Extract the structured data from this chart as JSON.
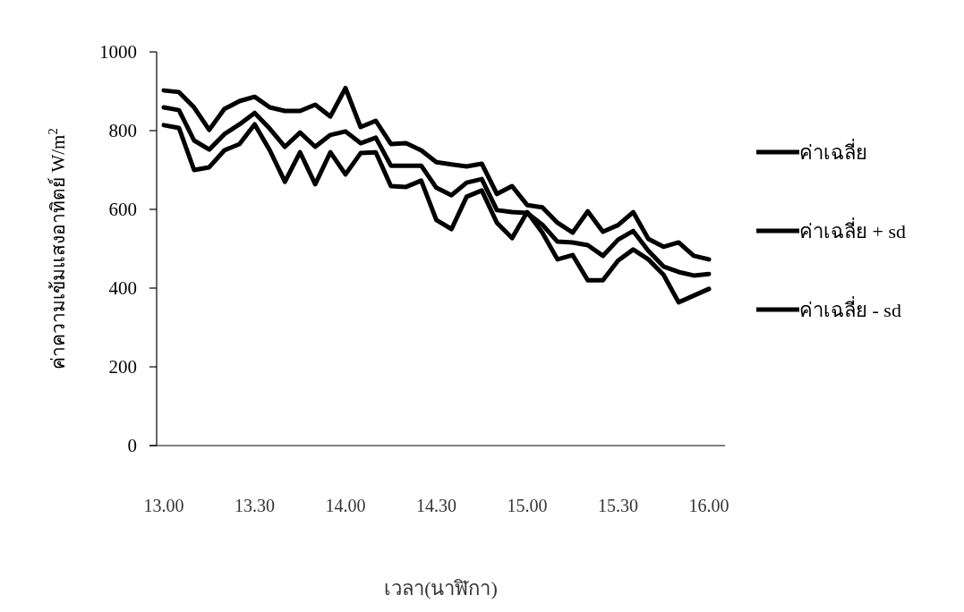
{
  "chart_data": {
    "type": "line",
    "xlabel": "เวลา(นาฬิกา)",
    "ylabel": "ค่าความเข้มแสงอาทิตย์ W/m$^{2}$",
    "categories": [
      "13.00",
      null,
      null,
      null,
      null,
      null,
      "13.30",
      null,
      null,
      null,
      null,
      null,
      "14.00",
      null,
      null,
      null,
      null,
      null,
      "14.30",
      null,
      null,
      null,
      null,
      null,
      "15.00",
      null,
      null,
      null,
      null,
      null,
      "15.30",
      null,
      null,
      null,
      null,
      null,
      "16.00"
    ],
    "series": [
      {
        "name": "ค่าเฉลี่ย",
        "color": "#000000",
        "values": [
          859,
          852,
          775,
          752,
          791,
          816,
          845,
          805,
          759,
          795,
          759,
          789,
          798,
          768,
          782,
          711,
          711,
          711,
          655,
          636,
          668,
          677,
          598,
          593,
          591,
          561,
          518,
          516,
          509,
          482,
          523,
          545,
          495,
          455,
          441,
          432,
          436
        ]
      },
      {
        "name": "ค่าเฉลี่ย + sd",
        "color": "#000000",
        "values": [
          902,
          898,
          859,
          802,
          855,
          875,
          886,
          859,
          850,
          850,
          866,
          836,
          908,
          809,
          825,
          766,
          768,
          750,
          720,
          714,
          709,
          716,
          639,
          659,
          611,
          605,
          566,
          541,
          595,
          543,
          560,
          593,
          525,
          505,
          516,
          482,
          473
        ]
      },
      {
        "name": "ค่าเฉลี่ย - sd",
        "color": "#000000",
        "values": [
          814,
          807,
          700,
          707,
          750,
          766,
          816,
          750,
          670,
          745,
          664,
          745,
          689,
          743,
          745,
          659,
          657,
          673,
          573,
          550,
          632,
          648,
          566,
          527,
          593,
          541,
          473,
          484,
          420,
          420,
          470,
          498,
          473,
          434,
          364,
          381,
          398
        ]
      }
    ],
    "ylim": [
      0,
      1000
    ],
    "yticks": [
      0,
      200,
      400,
      600,
      800,
      1000
    ],
    "legend": "right",
    "marker": "none",
    "line_style": "solid",
    "grid": false
  }
}
